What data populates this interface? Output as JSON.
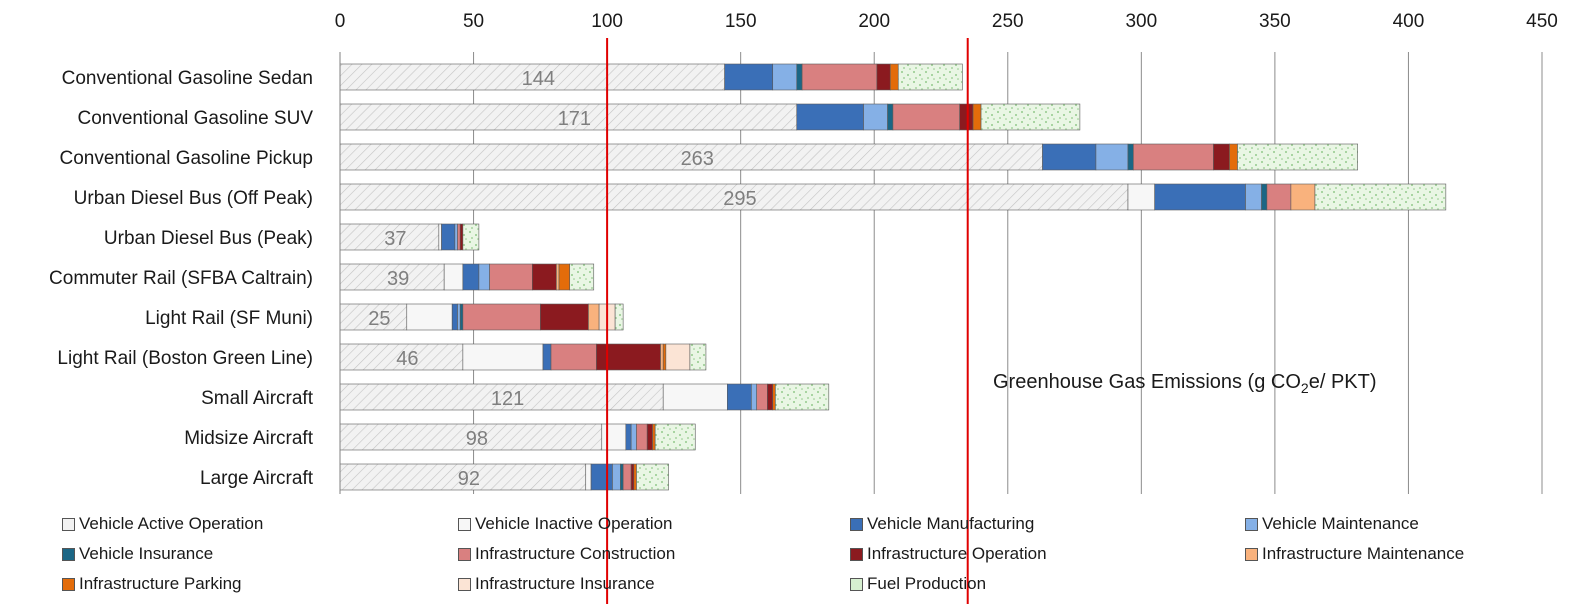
{
  "chart_data": {
    "type": "bar",
    "orientation": "horizontal",
    "stacked": true,
    "title": "",
    "xlabel": "Greenhouse Gas Emissions (g CO2e/ PKT)",
    "xlabel_parts": {
      "pre": "Greenhouse Gas Emissions (g CO",
      "sub": "2",
      "post": "e/ PKT)"
    },
    "xlim": [
      0,
      450
    ],
    "x_ticks": [
      "0",
      "50",
      "100",
      "150",
      "200",
      "250",
      "300",
      "350",
      "400",
      "450"
    ],
    "tick_values": [
      0,
      50,
      100,
      150,
      200,
      250,
      300,
      350,
      400,
      450
    ],
    "grid": true,
    "legend_position": "bottom",
    "reference_lines": [
      100,
      235
    ],
    "categories": [
      "Conventional Gasoline Sedan",
      "Conventional Gasoline SUV",
      "Conventional Gasoline Pickup",
      "Urban Diesel Bus (Off Peak)",
      "Urban Diesel Bus (Peak)",
      "Commuter Rail (SFBA Caltrain)",
      "Light Rail (SF Muni)",
      "Light Rail (Boston Green Line)",
      "Small Aircraft",
      "Midsize Aircraft",
      "Large Aircraft"
    ],
    "data_labels": [
      "144",
      "171",
      "263",
      "295",
      "37",
      "39",
      "25",
      "46",
      "121",
      "98",
      "92"
    ],
    "series": [
      {
        "name": "Vehicle Active Operation",
        "color": "#f2f2f2",
        "pattern": "hatch",
        "values": [
          144,
          171,
          263,
          295,
          37,
          39,
          25,
          46,
          121,
          98,
          92
        ]
      },
      {
        "name": "Vehicle Inactive Operation",
        "color": "#f7f7f7",
        "values": [
          0,
          0,
          0,
          10,
          1,
          7,
          17,
          30,
          24,
          9,
          2
        ]
      },
      {
        "name": "Vehicle Manufacturing",
        "color": "#3a6fb7",
        "values": [
          18,
          25,
          20,
          34,
          5,
          6,
          2,
          3,
          9,
          2,
          8
        ]
      },
      {
        "name": "Vehicle Maintenance",
        "color": "#85b0e6",
        "values": [
          9,
          9,
          12,
          6,
          1,
          4,
          1,
          0,
          2,
          2,
          3
        ]
      },
      {
        "name": "Vehicle Insurance",
        "color": "#1b6685",
        "values": [
          2,
          2,
          2,
          2,
          0,
          0,
          1,
          0,
          0,
          0,
          1
        ]
      },
      {
        "name": "Infrastructure Construction",
        "color": "#d98080",
        "values": [
          28,
          25,
          30,
          9,
          1,
          16,
          29,
          17,
          4,
          4,
          3
        ]
      },
      {
        "name": "Infrastructure Operation",
        "color": "#8b1a1f",
        "values": [
          5,
          5,
          6,
          0,
          1,
          9,
          18,
          24,
          2,
          2,
          1
        ]
      },
      {
        "name": "Infrastructure Maintenance",
        "color": "#f9b27d",
        "values": [
          0,
          0,
          0,
          9,
          0,
          1,
          4,
          1,
          0,
          0,
          0
        ]
      },
      {
        "name": "Infrastructure Parking",
        "color": "#e36c0a",
        "values": [
          3,
          3,
          3,
          0,
          0,
          4,
          0,
          1,
          1,
          1,
          1
        ]
      },
      {
        "name": "Infrastructure Insurance",
        "color": "#fbe4d5",
        "values": [
          0,
          0,
          0,
          0,
          0,
          0,
          6,
          9,
          0,
          0,
          0
        ]
      },
      {
        "name": "Fuel Production",
        "color": "#d6efd0",
        "pattern": "speckle",
        "values": [
          24,
          37,
          45,
          49,
          6,
          9,
          3,
          6,
          20,
          15,
          12
        ]
      }
    ]
  }
}
